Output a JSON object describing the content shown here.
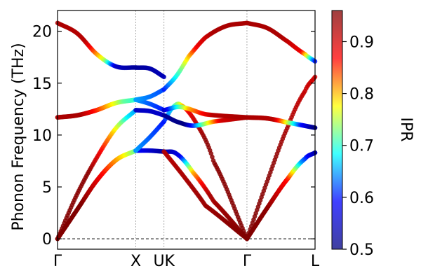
{
  "chart_data": {
    "type": "line",
    "ylabel": "Phonon Frequency (THz)",
    "colorbar_label": "IPR",
    "ylim": [
      -1,
      22
    ],
    "yticks": [
      0,
      5,
      10,
      15,
      20
    ],
    "xticks": [
      {
        "label": "Γ",
        "q": 0
      },
      {
        "label": "X",
        "q": 1
      },
      {
        "label": "UK",
        "q": 1.36
      },
      {
        "label": "Γ",
        "q": 2.42
      },
      {
        "label": "L",
        "q": 3.29
      }
    ],
    "vlines_at": [
      1,
      1.36,
      2.42
    ],
    "zero_line": 0,
    "grid": false,
    "colorbar": {
      "range": [
        0.5,
        0.96
      ],
      "ticks": [
        0.5,
        0.6,
        0.7,
        0.8,
        0.9
      ],
      "colormap": "jet",
      "colors": [
        "#00007f",
        "#0000ff",
        "#00ffff",
        "#ffff00",
        "#ff0000",
        "#7f0000"
      ]
    },
    "segments": [
      {
        "from": "Γ",
        "to": "X",
        "bands": [
          {
            "name": "1",
            "freq": [
              [
                0,
                0
              ],
              [
                0.25,
                2.8
              ],
              [
                0.5,
                5.6
              ],
              [
                0.75,
                7.6
              ],
              [
                1,
                8.5
              ]
            ],
            "ipr": [
              [
                0,
                0.93
              ],
              [
                0.3,
                0.95
              ],
              [
                0.6,
                0.86
              ],
              [
                0.85,
                0.78
              ],
              [
                1,
                0.72
              ]
            ]
          },
          {
            "name": "2",
            "freq": [
              [
                0,
                0
              ],
              [
                0.25,
                2.8
              ],
              [
                0.5,
                5.6
              ],
              [
                0.75,
                7.6
              ],
              [
                1,
                8.5
              ]
            ],
            "ipr": [
              [
                0,
                0.96
              ],
              [
                0.3,
                0.96
              ],
              [
                0.6,
                0.86
              ],
              [
                0.85,
                0.78
              ],
              [
                1,
                0.72
              ]
            ]
          },
          {
            "name": "3",
            "freq": [
              [
                0,
                0
              ],
              [
                0.25,
                4.3
              ],
              [
                0.5,
                7.8
              ],
              [
                0.75,
                10.7
              ],
              [
                1,
                12.4
              ]
            ],
            "ipr": [
              [
                0,
                0.96
              ],
              [
                0.4,
                0.95
              ],
              [
                0.7,
                0.8
              ],
              [
                0.9,
                0.68
              ],
              [
                1,
                0.65
              ]
            ]
          },
          {
            "name": "4",
            "freq": [
              [
                0,
                11.7
              ],
              [
                0.25,
                11.9
              ],
              [
                0.5,
                12.4
              ],
              [
                0.75,
                13.1
              ],
              [
                1,
                13.4
              ]
            ],
            "ipr": [
              [
                0,
                0.93
              ],
              [
                0.3,
                0.93
              ],
              [
                0.6,
                0.82
              ],
              [
                0.85,
                0.72
              ],
              [
                1,
                0.7
              ]
            ]
          },
          {
            "name": "5",
            "freq": [
              [
                0,
                11.7
              ],
              [
                0.25,
                11.9
              ],
              [
                0.5,
                12.4
              ],
              [
                0.75,
                13.1
              ],
              [
                1,
                13.4
              ]
            ],
            "ipr": [
              [
                0,
                0.93
              ],
              [
                0.3,
                0.93
              ],
              [
                0.6,
                0.82
              ],
              [
                0.85,
                0.72
              ],
              [
                1,
                0.7
              ]
            ]
          },
          {
            "name": "6",
            "freq": [
              [
                0,
                20.8
              ],
              [
                0.25,
                19.8
              ],
              [
                0.5,
                17.8
              ],
              [
                0.75,
                16.6
              ],
              [
                1,
                16.5
              ]
            ],
            "ipr": [
              [
                0,
                0.93
              ],
              [
                0.35,
                0.92
              ],
              [
                0.6,
                0.75
              ],
              [
                0.75,
                0.55
              ],
              [
                1,
                0.52
              ]
            ]
          }
        ]
      },
      {
        "from": "X",
        "to": "UK",
        "bands": [
          {
            "name": "1",
            "freq": [
              [
                0,
                8.5
              ],
              [
                0.5,
                8.5
              ],
              [
                1,
                8.4
              ]
            ],
            "ipr": [
              [
                0,
                0.6
              ],
              [
                1,
                0.52
              ]
            ]
          },
          {
            "name": "2",
            "freq": [
              [
                0,
                8.5
              ],
              [
                0.5,
                9.8
              ],
              [
                1,
                11.3
              ]
            ],
            "ipr": [
              [
                0,
                0.65
              ],
              [
                1,
                0.6
              ]
            ]
          },
          {
            "name": "3",
            "freq": [
              [
                0,
                12.4
              ],
              [
                0.5,
                12.3
              ],
              [
                1,
                11.9
              ]
            ],
            "ipr": [
              [
                0,
                0.55
              ],
              [
                1,
                0.55
              ]
            ]
          },
          {
            "name": "4",
            "freq": [
              [
                0,
                13.4
              ],
              [
                0.5,
                13.0
              ],
              [
                1,
                12.4
              ]
            ],
            "ipr": [
              [
                0,
                0.65
              ],
              [
                1,
                0.6
              ]
            ]
          },
          {
            "name": "5",
            "freq": [
              [
                0,
                13.4
              ],
              [
                0.5,
                13.7
              ],
              [
                1,
                14.4
              ]
            ],
            "ipr": [
              [
                0,
                0.65
              ],
              [
                1,
                0.62
              ]
            ]
          },
          {
            "name": "6",
            "freq": [
              [
                0,
                16.5
              ],
              [
                0.5,
                16.4
              ],
              [
                1,
                15.6
              ]
            ],
            "ipr": [
              [
                0,
                0.52
              ],
              [
                1,
                0.54
              ]
            ]
          }
        ]
      },
      {
        "from": "UK",
        "to": "Γ",
        "bands": [
          {
            "name": "1",
            "freq": [
              [
                0,
                8.4
              ],
              [
                0.15,
                8.2
              ],
              [
                0.35,
                6.4
              ],
              [
                0.6,
                3.6
              ],
              [
                1,
                0
              ]
            ],
            "ipr": [
              [
                0,
                0.52
              ],
              [
                0.2,
                0.58
              ],
              [
                0.35,
                0.8
              ],
              [
                0.55,
                0.93
              ],
              [
                1,
                0.96
              ]
            ]
          },
          {
            "name": "2",
            "freq": [
              [
                0,
                8.4
              ],
              [
                0.25,
                5.9
              ],
              [
                0.5,
                3.2
              ],
              [
                1,
                0
              ]
            ],
            "ipr": [
              [
                0,
                0.92
              ],
              [
                1,
                0.96
              ]
            ]
          },
          {
            "name": "3",
            "freq": [
              [
                0,
                11.3
              ],
              [
                0.1,
                12.6
              ],
              [
                0.2,
                12.9
              ],
              [
                0.4,
                11.0
              ],
              [
                0.6,
                7.4
              ],
              [
                1,
                0
              ]
            ],
            "ipr": [
              [
                0,
                0.6
              ],
              [
                0.15,
                0.72
              ],
              [
                0.3,
                0.88
              ],
              [
                0.5,
                0.95
              ],
              [
                1,
                0.96
              ]
            ]
          },
          {
            "name": "4",
            "freq": [
              [
                0,
                11.9
              ],
              [
                0.15,
                11.3
              ],
              [
                0.35,
                10.9
              ],
              [
                0.6,
                11.3
              ],
              [
                1,
                11.7
              ]
            ],
            "ipr": [
              [
                0,
                0.52
              ],
              [
                0.25,
                0.5
              ],
              [
                0.45,
                0.7
              ],
              [
                0.7,
                0.9
              ],
              [
                1,
                0.93
              ]
            ]
          },
          {
            "name": "5",
            "freq": [
              [
                0,
                12.4
              ],
              [
                0.2,
                12.7
              ],
              [
                0.5,
                12.0
              ],
              [
                1,
                11.7
              ]
            ],
            "ipr": [
              [
                0,
                0.55
              ],
              [
                0.3,
                0.8
              ],
              [
                0.6,
                0.92
              ],
              [
                1,
                0.93
              ]
            ]
          },
          {
            "name": "6",
            "freq": [
              [
                0,
                14.4
              ],
              [
                0.15,
                15.7
              ],
              [
                0.3,
                17.6
              ],
              [
                0.5,
                19.4
              ],
              [
                0.75,
                20.5
              ],
              [
                1,
                20.8
              ]
            ],
            "ipr": [
              [
                0,
                0.6
              ],
              [
                0.2,
                0.72
              ],
              [
                0.4,
                0.88
              ],
              [
                0.6,
                0.93
              ],
              [
                1,
                0.93
              ]
            ]
          }
        ]
      },
      {
        "from": "Γ",
        "to": "L",
        "bands": [
          {
            "name": "1",
            "freq": [
              [
                0,
                0
              ],
              [
                0.3,
                3.0
              ],
              [
                0.6,
                5.8
              ],
              [
                0.85,
                7.7
              ],
              [
                1,
                8.3
              ]
            ],
            "ipr": [
              [
                0,
                0.96
              ],
              [
                0.3,
                0.95
              ],
              [
                0.6,
                0.86
              ],
              [
                0.8,
                0.65
              ],
              [
                1,
                0.53
              ]
            ]
          },
          {
            "name": "2",
            "freq": [
              [
                0,
                0
              ],
              [
                0.3,
                3.0
              ],
              [
                0.6,
                5.8
              ],
              [
                0.85,
                7.7
              ],
              [
                1,
                8.3
              ]
            ],
            "ipr": [
              [
                0,
                0.96
              ],
              [
                0.3,
                0.95
              ],
              [
                0.6,
                0.86
              ],
              [
                0.8,
                0.65
              ],
              [
                1,
                0.53
              ]
            ]
          },
          {
            "name": "3",
            "freq": [
              [
                0,
                0
              ],
              [
                0.3,
                5.6
              ],
              [
                0.6,
                10.8
              ],
              [
                0.85,
                14.2
              ],
              [
                1,
                15.6
              ]
            ],
            "ipr": [
              [
                0,
                0.96
              ],
              [
                0.4,
                0.95
              ],
              [
                0.7,
                0.92
              ],
              [
                1,
                0.9
              ]
            ]
          },
          {
            "name": "4",
            "freq": [
              [
                0,
                11.7
              ],
              [
                0.3,
                11.6
              ],
              [
                0.6,
                11.2
              ],
              [
                1,
                10.7
              ]
            ],
            "ipr": [
              [
                0,
                0.93
              ],
              [
                0.4,
                0.92
              ],
              [
                0.8,
                0.6
              ],
              [
                1,
                0.5
              ]
            ]
          },
          {
            "name": "5",
            "freq": [
              [
                0,
                11.7
              ],
              [
                0.3,
                11.6
              ],
              [
                0.6,
                11.2
              ],
              [
                1,
                10.7
              ]
            ],
            "ipr": [
              [
                0,
                0.93
              ],
              [
                0.4,
                0.92
              ],
              [
                0.8,
                0.6
              ],
              [
                1,
                0.5
              ]
            ]
          },
          {
            "name": "6",
            "freq": [
              [
                0,
                20.8
              ],
              [
                0.3,
                20.3
              ],
              [
                0.6,
                19.0
              ],
              [
                0.85,
                17.8
              ],
              [
                1,
                17.1
              ]
            ],
            "ipr": [
              [
                0,
                0.93
              ],
              [
                0.5,
                0.93
              ],
              [
                0.8,
                0.88
              ],
              [
                1,
                0.6
              ]
            ]
          }
        ]
      }
    ]
  }
}
